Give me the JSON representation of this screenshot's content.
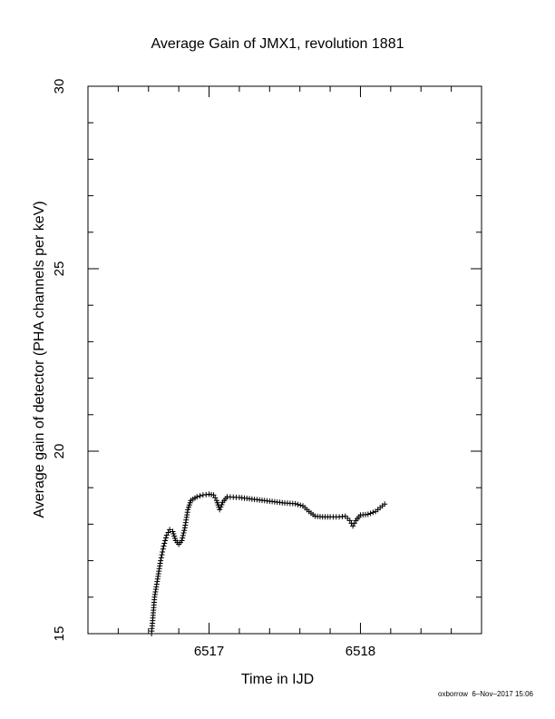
{
  "chart_data": {
    "type": "scatter",
    "title": "Average Gain of JMX1, revolution 1881",
    "xlabel": "Time in IJD",
    "ylabel": "Average gain of detector (PHA channels per keV)",
    "xlim": [
      6516.2,
      6518.8
    ],
    "ylim": [
      15,
      30
    ],
    "x_ticks": [
      "6517",
      "6518"
    ],
    "y_ticks": [
      "15",
      "20",
      "25",
      "30"
    ],
    "marker": "plus",
    "grid": false,
    "series": [
      {
        "points": [
          [
            6516.62,
            15.0
          ],
          [
            6516.63,
            15.5
          ],
          [
            6516.64,
            16.0
          ],
          [
            6516.66,
            16.5
          ],
          [
            6516.68,
            17.0
          ],
          [
            6516.7,
            17.4
          ],
          [
            6516.72,
            17.7
          ],
          [
            6516.74,
            17.85
          ],
          [
            6516.76,
            17.8
          ],
          [
            6516.78,
            17.55
          ],
          [
            6516.8,
            17.45
          ],
          [
            6516.82,
            17.55
          ],
          [
            6516.84,
            17.9
          ],
          [
            6516.86,
            18.4
          ],
          [
            6516.88,
            18.65
          ],
          [
            6516.92,
            18.75
          ],
          [
            6516.96,
            18.8
          ],
          [
            6517.0,
            18.82
          ],
          [
            6517.03,
            18.8
          ],
          [
            6517.05,
            18.65
          ],
          [
            6517.07,
            18.4
          ],
          [
            6517.09,
            18.6
          ],
          [
            6517.12,
            18.75
          ],
          [
            6517.2,
            18.73
          ],
          [
            6517.3,
            18.68
          ],
          [
            6517.4,
            18.63
          ],
          [
            6517.5,
            18.58
          ],
          [
            6517.57,
            18.56
          ],
          [
            6517.62,
            18.5
          ],
          [
            6517.66,
            18.35
          ],
          [
            6517.7,
            18.22
          ],
          [
            6517.75,
            18.2
          ],
          [
            6517.8,
            18.2
          ],
          [
            6517.86,
            18.2
          ],
          [
            6517.9,
            18.22
          ],
          [
            6517.93,
            18.1
          ],
          [
            6517.95,
            17.95
          ],
          [
            6517.97,
            18.1
          ],
          [
            6518.0,
            18.25
          ],
          [
            6518.05,
            18.27
          ],
          [
            6518.1,
            18.35
          ],
          [
            6518.13,
            18.45
          ],
          [
            6518.16,
            18.55
          ]
        ]
      }
    ]
  },
  "footer": "oxborrow  6–Nov–2017 15:06",
  "colors": {
    "axes": "#000000",
    "marker": "#000000",
    "background": "#ffffff"
  }
}
